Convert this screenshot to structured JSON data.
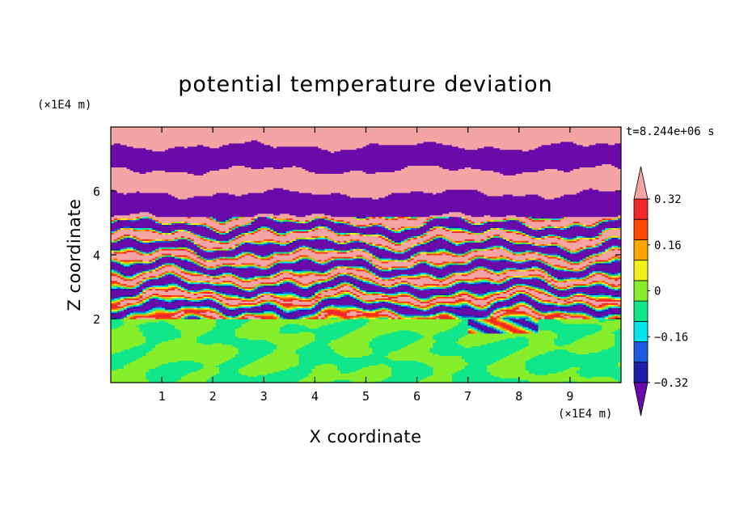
{
  "chart_data": {
    "type": "heatmap",
    "title": "potential temperature deviation",
    "xlabel": "X coordinate",
    "ylabel": "Z coordinate",
    "x_unit": "(×1E4 m)",
    "y_unit": "(×1E4 m)",
    "time_label": "t=8.244e+06 s",
    "xlim": [
      0,
      10
    ],
    "ylim": [
      0,
      8
    ],
    "x_ticks": [
      "1",
      "2",
      "3",
      "4",
      "5",
      "6",
      "7",
      "8",
      "9"
    ],
    "y_ticks": [
      "2",
      "4",
      "6"
    ],
    "colorbar": {
      "levels": [
        -0.4,
        -0.32,
        -0.24,
        -0.16,
        -0.08,
        0,
        0.08,
        0.16,
        0.24,
        0.32,
        0.4
      ],
      "labels": [
        "0.32",
        "0.16",
        "0",
        "−0.16",
        "−0.32"
      ],
      "label_values": [
        0.32,
        0.16,
        0,
        -0.16,
        -0.32
      ],
      "colors": [
        "#6a0aa8",
        "#1e1ea8",
        "#1c5be0",
        "#00e6f0",
        "#12e68a",
        "#86ee2a",
        "#f2f21a",
        "#ffa700",
        "#ff4800",
        "#f0282a",
        "#f4a4a4"
      ],
      "extend": "both"
    },
    "fields": [
      {
        "region": "lower layer",
        "z_range": [
          0,
          2
        ],
        "values": [
          -0.05,
          0.05
        ]
      },
      {
        "region": "layered upper region",
        "z_range": [
          2,
          8
        ],
        "values": [
          -0.4,
          0.4
        ]
      }
    ]
  },
  "colors": {
    "background": "#ffffff",
    "axis": "#000000"
  }
}
